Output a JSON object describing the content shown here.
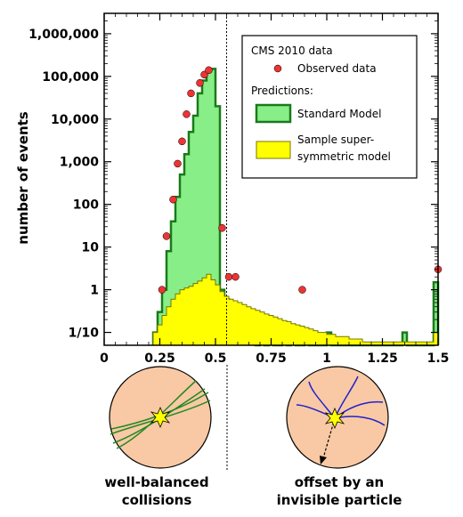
{
  "chart_data": {
    "type": "histogram",
    "ylabel": "number of events",
    "yscale": "log",
    "xlim": [
      0,
      1.5
    ],
    "ylim": [
      0.05,
      3000000
    ],
    "xticks": [
      {
        "value": 0,
        "label": "0"
      },
      {
        "value": 0.25,
        "label": "0.25"
      },
      {
        "value": 0.5,
        "label": "0.5"
      },
      {
        "value": 0.75,
        "label": "0.75"
      },
      {
        "value": 1,
        "label": "1"
      },
      {
        "value": 1.25,
        "label": "1.25"
      },
      {
        "value": 1.5,
        "label": "1.5"
      }
    ],
    "yticks": [
      {
        "value": 0.1,
        "label": "1/10"
      },
      {
        "value": 1,
        "label": "1"
      },
      {
        "value": 10,
        "label": "10"
      },
      {
        "value": 100,
        "label": "100"
      },
      {
        "value": 1000,
        "label": "1,000"
      },
      {
        "value": 10000,
        "label": "10,000"
      },
      {
        "value": 100000,
        "label": "100,000"
      },
      {
        "value": 1000000,
        "label": "1,000,000"
      }
    ],
    "cut_line_x": 0.55,
    "bin_edges": [
      0.22,
      0.24,
      0.26,
      0.28,
      0.3,
      0.32,
      0.34,
      0.36,
      0.38,
      0.4,
      0.42,
      0.44,
      0.46,
      0.48,
      0.5,
      0.52,
      0.54,
      0.56,
      0.58,
      0.6,
      0.62,
      0.64,
      0.66,
      0.68,
      0.7,
      0.72,
      0.74,
      0.76,
      0.78,
      0.8,
      0.82,
      0.84,
      0.86,
      0.88,
      0.9,
      0.92,
      0.94,
      0.96,
      0.98,
      1.0,
      1.02,
      1.04,
      1.06,
      1.08,
      1.1,
      1.12,
      1.14,
      1.16,
      1.18,
      1.2,
      1.22,
      1.24,
      1.26,
      1.28,
      1.3,
      1.32,
      1.34,
      1.36,
      1.38,
      1.4,
      1.42,
      1.44,
      1.46,
      1.48,
      1.5
    ],
    "series": [
      {
        "name": "Standard Model",
        "color": "#88ee88",
        "edge": "#1a7a1a",
        "values": [
          0.1,
          0.3,
          1.0,
          8,
          40,
          150,
          500,
          1500,
          5000,
          12000,
          40000,
          80000,
          130000,
          150000,
          20000,
          1.0,
          0.6,
          0.5,
          0.4,
          0.3,
          0.2,
          0.1,
          0.1,
          0.05,
          0.2,
          0.05,
          0.1,
          0.05,
          0.05,
          0.1,
          0.05,
          0.1,
          0.05,
          0.05,
          0.1,
          0.05,
          0.05,
          0.05,
          0.05,
          0.1,
          0.05,
          0.05,
          0.05,
          0.05,
          0.05,
          0.05,
          0.05,
          0.05,
          0.05,
          0.05,
          0.05,
          0.05,
          0.05,
          0.05,
          0.05,
          0.05,
          0.1,
          0.05,
          0.05,
          0.05,
          0.05,
          0.05,
          0.05,
          1.5
        ]
      },
      {
        "name": "Sample super-symmetric model",
        "color": "#ffff00",
        "edge": "#777700",
        "values": [
          0.1,
          0.15,
          0.25,
          0.4,
          0.6,
          0.8,
          1.0,
          1.1,
          1.2,
          1.4,
          1.6,
          1.9,
          2.3,
          1.7,
          1.3,
          0.9,
          0.7,
          0.6,
          0.55,
          0.5,
          0.45,
          0.4,
          0.36,
          0.33,
          0.3,
          0.27,
          0.25,
          0.23,
          0.21,
          0.19,
          0.18,
          0.16,
          0.15,
          0.14,
          0.13,
          0.12,
          0.11,
          0.1,
          0.1,
          0.09,
          0.09,
          0.08,
          0.08,
          0.08,
          0.07,
          0.07,
          0.07,
          0.06,
          0.06,
          0.06,
          0.06,
          0.06,
          0.06,
          0.06,
          0.06,
          0.06,
          0.06,
          0.06,
          0.06,
          0.06,
          0.06,
          0.06,
          0.06,
          0.1
        ]
      }
    ],
    "observed": {
      "name": "Observed data",
      "color": "#ee3333",
      "points": [
        {
          "x": 0.26,
          "y": 1
        },
        {
          "x": 0.28,
          "y": 18
        },
        {
          "x": 0.31,
          "y": 130
        },
        {
          "x": 0.33,
          "y": 900
        },
        {
          "x": 0.35,
          "y": 3000
        },
        {
          "x": 0.37,
          "y": 13000
        },
        {
          "x": 0.39,
          "y": 40000
        },
        {
          "x": 0.43,
          "y": 70000
        },
        {
          "x": 0.45,
          "y": 110000
        },
        {
          "x": 0.47,
          "y": 140000
        },
        {
          "x": 0.53,
          "y": 28
        },
        {
          "x": 0.56,
          "y": 2
        },
        {
          "x": 0.59,
          "y": 2
        },
        {
          "x": 0.89,
          "y": 1
        },
        {
          "x": 1.5,
          "y": 3
        }
      ]
    },
    "legend": {
      "title": "CMS 2010 data",
      "observed_label": "Observed data",
      "predictions_label": "Predictions:",
      "sm_label": "Standard Model",
      "susy_label_1": "Sample super-",
      "susy_label_2": "symmetric model",
      "placement": "top-right"
    }
  },
  "captions": {
    "left_1": "well-balanced",
    "left_2": "collisions",
    "right_1": "offset by an",
    "right_2": "invisible particle"
  },
  "colors": {
    "circle_fill": "#f8c9a4",
    "left_tracks": "#228822",
    "right_tracks": "#2222cc",
    "star": "#ffff00"
  }
}
